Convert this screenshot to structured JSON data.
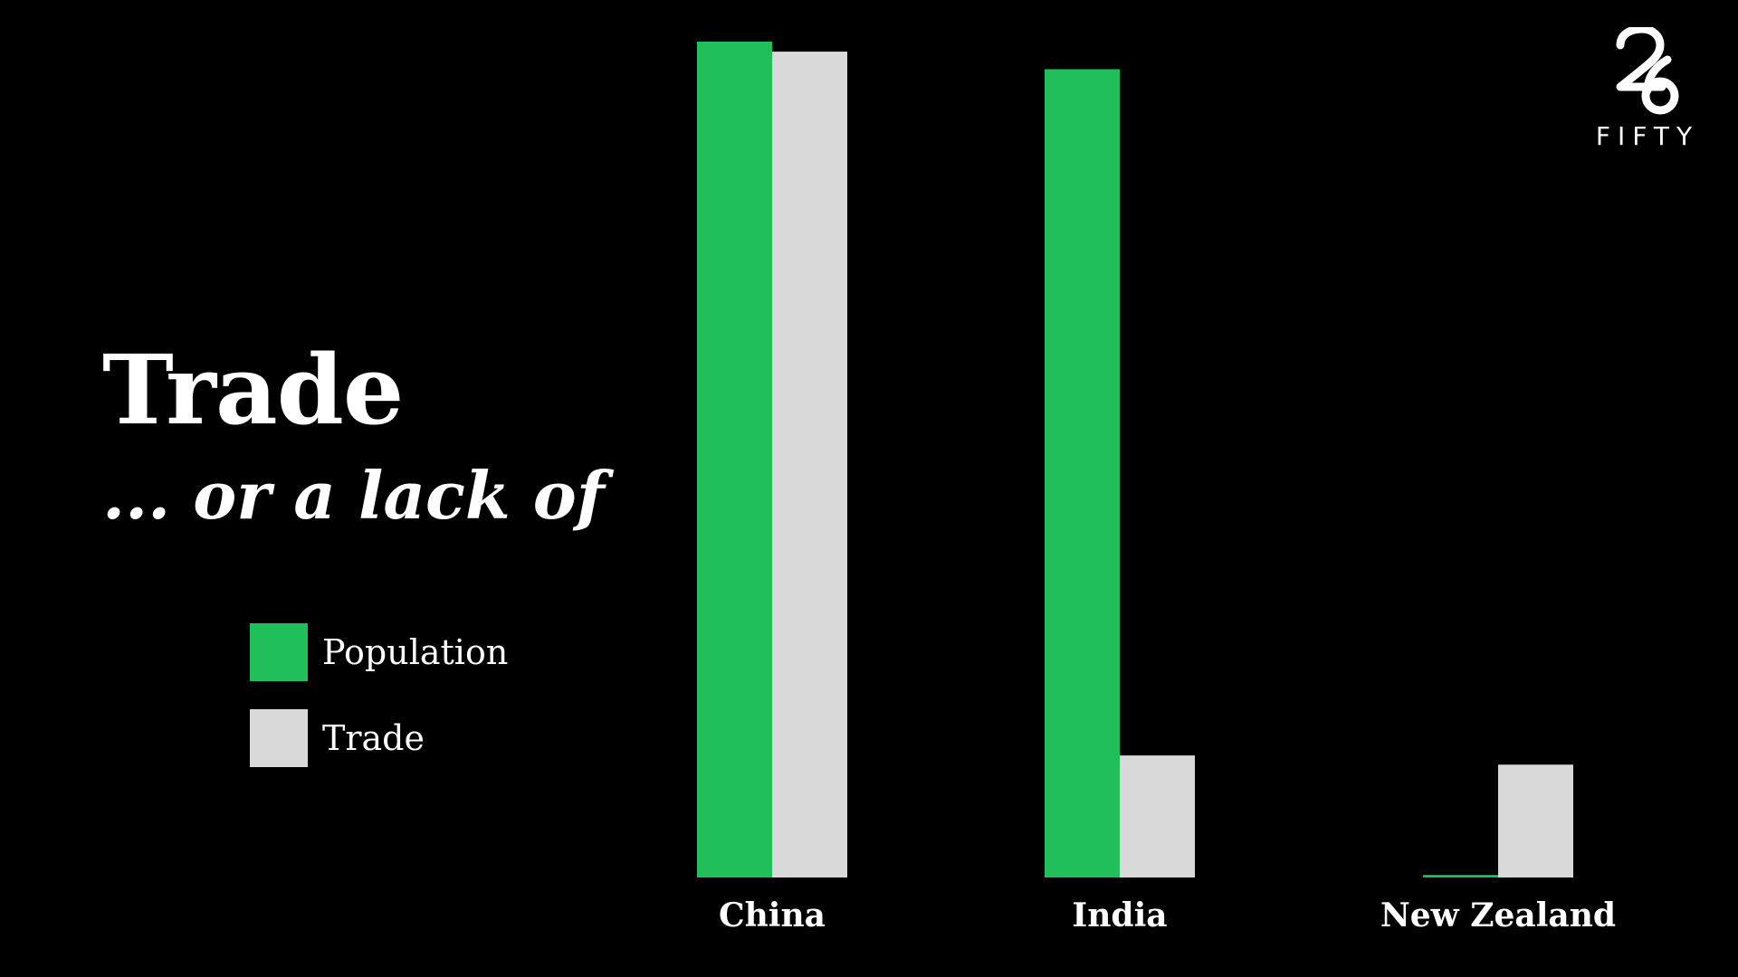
{
  "header": {
    "title": "Trade",
    "subtitle": "... or a lack of"
  },
  "logo": {
    "number": "26",
    "word": "FIFTY"
  },
  "colors": {
    "background": "#000000",
    "population": "#21bf59",
    "trade": "#d9d9d9",
    "text": "#ffffff"
  },
  "legend": {
    "items": [
      {
        "label": "Population",
        "color": "#21bf59"
      },
      {
        "label": "Trade",
        "color": "#d9d9d9"
      }
    ]
  },
  "chart_data": {
    "type": "bar",
    "title": "",
    "xlabel": "",
    "ylabel": "",
    "categories": [
      "China",
      "India",
      "New Zealand"
    ],
    "series": [
      {
        "name": "Population",
        "values": [
          100,
          96.7,
          0.3
        ],
        "color": "#21bf59"
      },
      {
        "name": "Trade",
        "values": [
          98.8,
          14.6,
          13.5
        ],
        "color": "#d9d9d9"
      }
    ],
    "ylim": [
      0,
      100
    ],
    "grid": false,
    "axes_visible": false,
    "legend_position": "left"
  }
}
